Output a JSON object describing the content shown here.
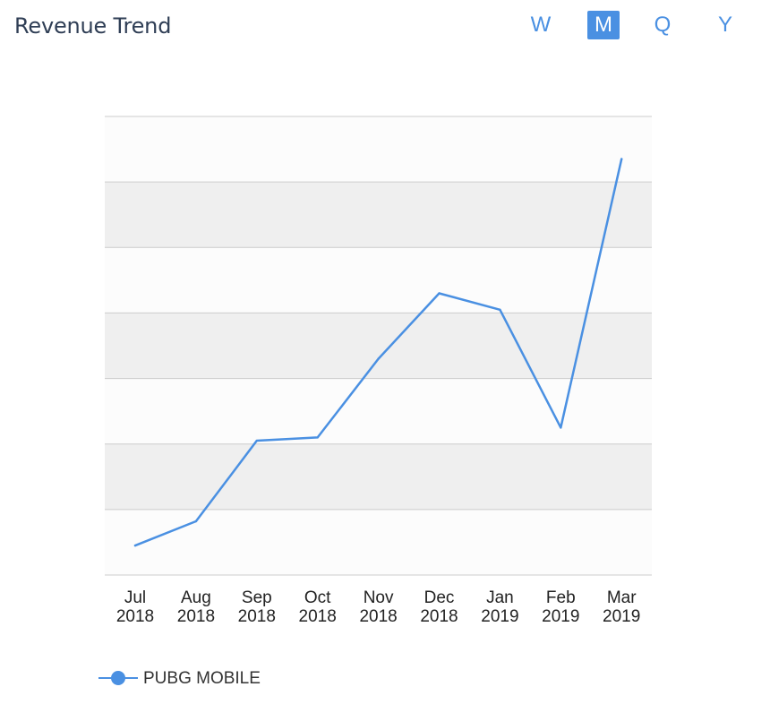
{
  "header": {
    "title": "Revenue Trend",
    "periods": [
      {
        "label": "W",
        "active": false
      },
      {
        "label": "M",
        "active": true
      },
      {
        "label": "Q",
        "active": false
      },
      {
        "label": "Y",
        "active": false
      }
    ]
  },
  "legend": {
    "label": "PUBG MOBILE"
  },
  "colors": {
    "accent": "#4a90e2",
    "band_dark": "#efefef",
    "band_light": "#fcfcfc",
    "gridline": "#cccccc"
  },
  "chart_data": {
    "type": "line",
    "categories": [
      [
        "Jul",
        "2018"
      ],
      [
        "Aug",
        "2018"
      ],
      [
        "Sep",
        "2018"
      ],
      [
        "Oct",
        "2018"
      ],
      [
        "Nov",
        "2018"
      ],
      [
        "Dec",
        "2018"
      ],
      [
        "Jan",
        "2019"
      ],
      [
        "Feb",
        "2019"
      ],
      [
        "Mar",
        "2019"
      ]
    ],
    "series": [
      {
        "name": "PUBG MOBILE",
        "values": [
          0.45,
          0.82,
          2.05,
          2.1,
          3.3,
          4.3,
          4.05,
          2.25,
          6.35
        ]
      }
    ],
    "ylim": [
      0,
      7
    ],
    "y_tick_count": 7,
    "y_tick_labels_visible": false,
    "grid": true,
    "legend_position": "bottom-left"
  }
}
